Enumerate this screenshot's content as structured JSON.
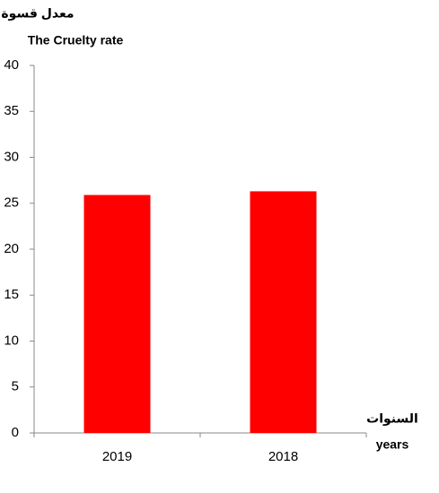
{
  "chart_data": {
    "type": "bar",
    "y_label": [
      "معدل قسوة",
      "The Cruelty rate"
    ],
    "x_label": [
      "السنوات",
      "years"
    ],
    "categories": [
      "2019",
      "2018"
    ],
    "values": [
      25.9,
      26.3
    ],
    "color": "#ff0000",
    "ylim": [
      0,
      40
    ],
    "yticks": [
      0,
      5,
      10,
      15,
      20,
      25,
      30,
      35,
      40
    ]
  }
}
